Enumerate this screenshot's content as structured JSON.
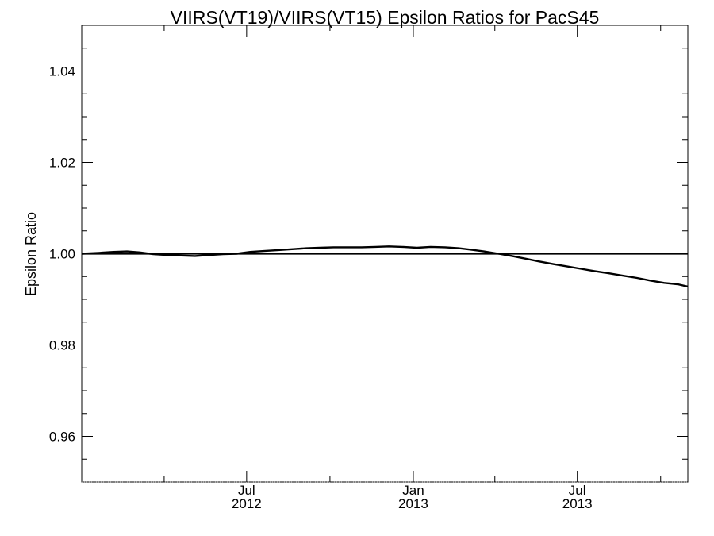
{
  "chart_data": {
    "type": "line",
    "title": "VIIRS(VT19)/VIIRS(VT15)  Epsilon Ratios for PacS45",
    "xlabel": "",
    "ylabel": "Epsilon Ratio",
    "xlim": [
      "2012-01-01",
      "2013-10-31"
    ],
    "ylim": [
      0.95,
      1.05
    ],
    "yticks": [
      0.96,
      0.98,
      1.0,
      1.02,
      1.04
    ],
    "ytick_labels": [
      "0.96",
      "0.98",
      "1.00",
      "1.02",
      "1.04"
    ],
    "y_minor_step": 0.005,
    "xticks_major": [
      {
        "date": "2012-07-01",
        "month": "Jul",
        "year": "2012"
      },
      {
        "date": "2013-01-01",
        "month": "Jan",
        "year": "2013"
      },
      {
        "date": "2013-07-01",
        "month": "Jul",
        "year": "2013"
      }
    ],
    "xticks_minor": [
      "2012-04-01",
      "2012-10-01",
      "2013-04-01",
      "2013-10-01"
    ],
    "reference_line": 1.0,
    "grid": false,
    "x": [
      "2012-01-01",
      "2012-01-20",
      "2012-02-05",
      "2012-02-20",
      "2012-03-05",
      "2012-03-20",
      "2012-04-05",
      "2012-04-20",
      "2012-05-05",
      "2012-05-20",
      "2012-06-05",
      "2012-06-20",
      "2012-07-05",
      "2012-07-20",
      "2012-08-05",
      "2012-08-20",
      "2012-09-05",
      "2012-09-20",
      "2012-10-05",
      "2012-10-20",
      "2012-11-05",
      "2012-11-20",
      "2012-12-05",
      "2012-12-20",
      "2013-01-05",
      "2013-01-20",
      "2013-02-05",
      "2013-02-20",
      "2013-03-05",
      "2013-03-20",
      "2013-04-05",
      "2013-04-20",
      "2013-05-05",
      "2013-05-20",
      "2013-06-05",
      "2013-06-20",
      "2013-07-05",
      "2013-07-20",
      "2013-08-05",
      "2013-08-20",
      "2013-09-05",
      "2013-09-20",
      "2013-10-05",
      "2013-10-20",
      "2013-10-31"
    ],
    "y": [
      1.0,
      1.0002,
      1.0004,
      1.0005,
      1.0003,
      0.9999,
      0.9997,
      0.9996,
      0.9995,
      0.9997,
      0.9999,
      1.0,
      1.0004,
      1.0006,
      1.0008,
      1.001,
      1.0012,
      1.0013,
      1.0014,
      1.0014,
      1.0014,
      1.0015,
      1.0016,
      1.0015,
      1.0013,
      1.0015,
      1.0014,
      1.0012,
      1.0009,
      1.0005,
      1.0,
      0.9995,
      0.9989,
      0.9983,
      0.9977,
      0.9972,
      0.9967,
      0.9962,
      0.9957,
      0.9952,
      0.9947,
      0.9941,
      0.9936,
      0.9933,
      0.9928
    ]
  }
}
